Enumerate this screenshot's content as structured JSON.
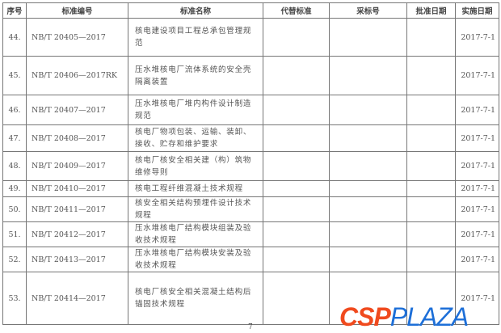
{
  "headers": [
    "序号",
    "标准编号",
    "标准名称",
    "代替标准",
    "采标号",
    "批准日期",
    "实施日期"
  ],
  "rows": [
    {
      "no": "44.",
      "code": "NB/T 20405—2017",
      "name": "核电建设项目工程总承包管理规范",
      "replaces": "",
      "adopted": "",
      "approved": "",
      "effective": "2017-7-1"
    },
    {
      "no": "45.",
      "code": "NB/T 20406—2017RK",
      "name": "压水堆核电厂流体系统的安全壳隔离装置",
      "replaces": "",
      "adopted": "",
      "approved": "",
      "effective": "2017-7-1"
    },
    {
      "no": "46.",
      "code": "NB/T 20407—2017",
      "name": "压水堆核电厂堆内构件设计制造规范",
      "replaces": "",
      "adopted": "",
      "approved": "",
      "effective": "2017-7-1"
    },
    {
      "no": "47.",
      "code": "NB/T 20408—2017",
      "name": "核电厂物项包装、运输、装卸、接收、贮存和维护要求",
      "replaces": "",
      "adopted": "",
      "approved": "",
      "effective": "2017-7-1"
    },
    {
      "no": "48.",
      "code": "NB/T 20409—2017",
      "name": "核电厂核安全相关建（构）筑物维修导则",
      "replaces": "",
      "adopted": "",
      "approved": "",
      "effective": "2017-7-1"
    },
    {
      "no": "49.",
      "code": "NB/T 20410—2017",
      "name": "核电工程纤维混凝土技术规程",
      "replaces": "",
      "adopted": "",
      "approved": "",
      "effective": "2017-7-1"
    },
    {
      "no": "50.",
      "code": "NB/T 20411—2017",
      "name": "核安全相关结构预埋件设计技术规程",
      "replaces": "",
      "adopted": "",
      "approved": "",
      "effective": "2017-7-1"
    },
    {
      "no": "51.",
      "code": "NB/T 20412—2017",
      "name": "压水堆核电厂结构模块组装及验收技术规程",
      "replaces": "",
      "adopted": "",
      "approved": "",
      "effective": "2017-7-1"
    },
    {
      "no": "52.",
      "code": "NB/T 20413—2017",
      "name": "压水堆核电厂结构模块安装及验收技术规程",
      "replaces": "",
      "adopted": "",
      "approved": "",
      "effective": "2017-7-1"
    },
    {
      "no": "53.",
      "code": "NB/T 20414—2017",
      "name": "核电厂核安全相关混凝土结构后锚固技术规程",
      "replaces": "",
      "adopted": "",
      "approved": "",
      "effective": "2017-7-1"
    }
  ],
  "page_number": "7",
  "watermark": {
    "part1": "CSP",
    "part2": "PLAZA",
    "color1": "#f04a1e",
    "color2": "#1d6fd8"
  }
}
